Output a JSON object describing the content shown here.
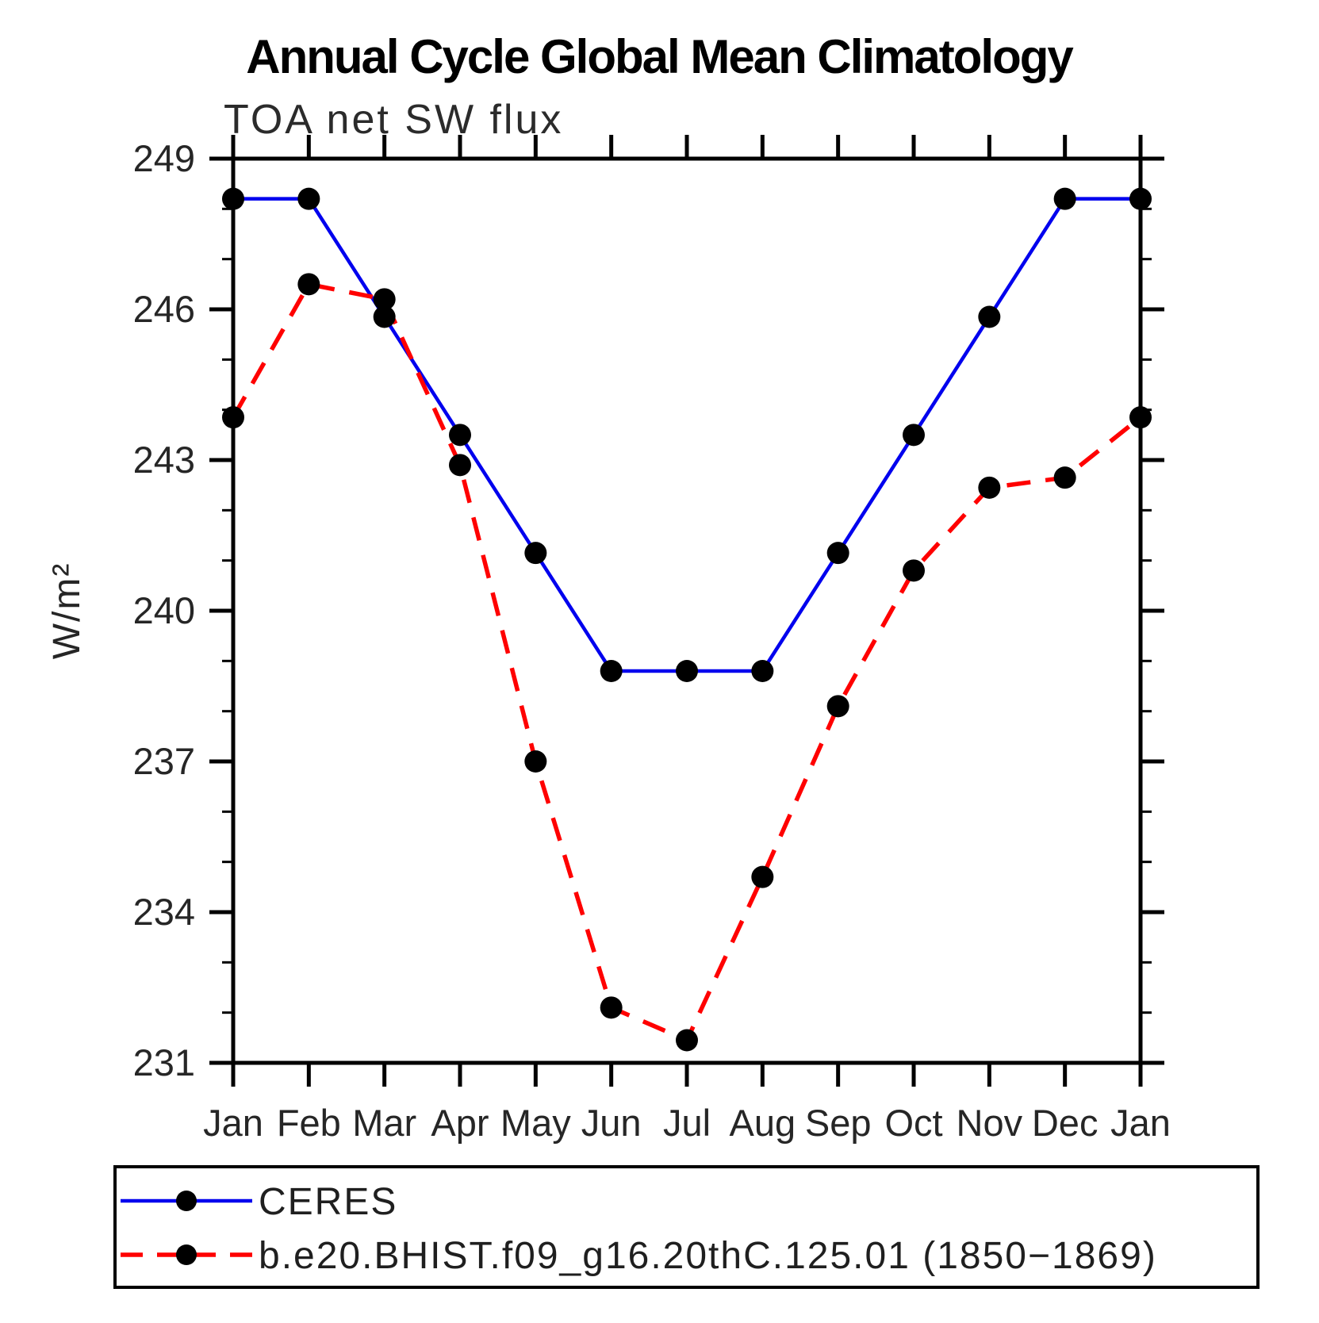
{
  "title": "Annual Cycle Global Mean Climatology",
  "subtitle": "TOA net SW flux",
  "ylabel": "W/m²",
  "chart_data": {
    "type": "line",
    "categories": [
      "Jan",
      "Feb",
      "Mar",
      "Apr",
      "May",
      "Jun",
      "Jul",
      "Aug",
      "Sep",
      "Oct",
      "Nov",
      "Dec",
      "Jan"
    ],
    "series": [
      {
        "name": "CERES",
        "color": "#0000ee",
        "line_style": "solid",
        "marker": "circle",
        "marker_color": "#000000",
        "values": [
          248.2,
          248.2,
          245.85,
          243.5,
          241.15,
          238.8,
          238.8,
          238.8,
          241.15,
          243.5,
          245.85,
          248.2,
          248.2
        ]
      },
      {
        "name": "b.e20.BHIST.f09_g16.20thC.125.01 (1850−1869)",
        "color": "#ff0000",
        "line_style": "dashed",
        "marker": "circle",
        "marker_color": "#000000",
        "values": [
          243.85,
          246.5,
          246.2,
          242.9,
          237.0,
          232.1,
          231.45,
          234.7,
          238.1,
          240.8,
          242.45,
          242.65,
          243.85
        ]
      }
    ],
    "ylim": [
      231,
      249
    ],
    "yticks": [
      231,
      234,
      237,
      240,
      243,
      246,
      249
    ],
    "minor_tick_step": 1,
    "grid": false,
    "legend_position": "bottom",
    "frame_color": "#000000"
  }
}
